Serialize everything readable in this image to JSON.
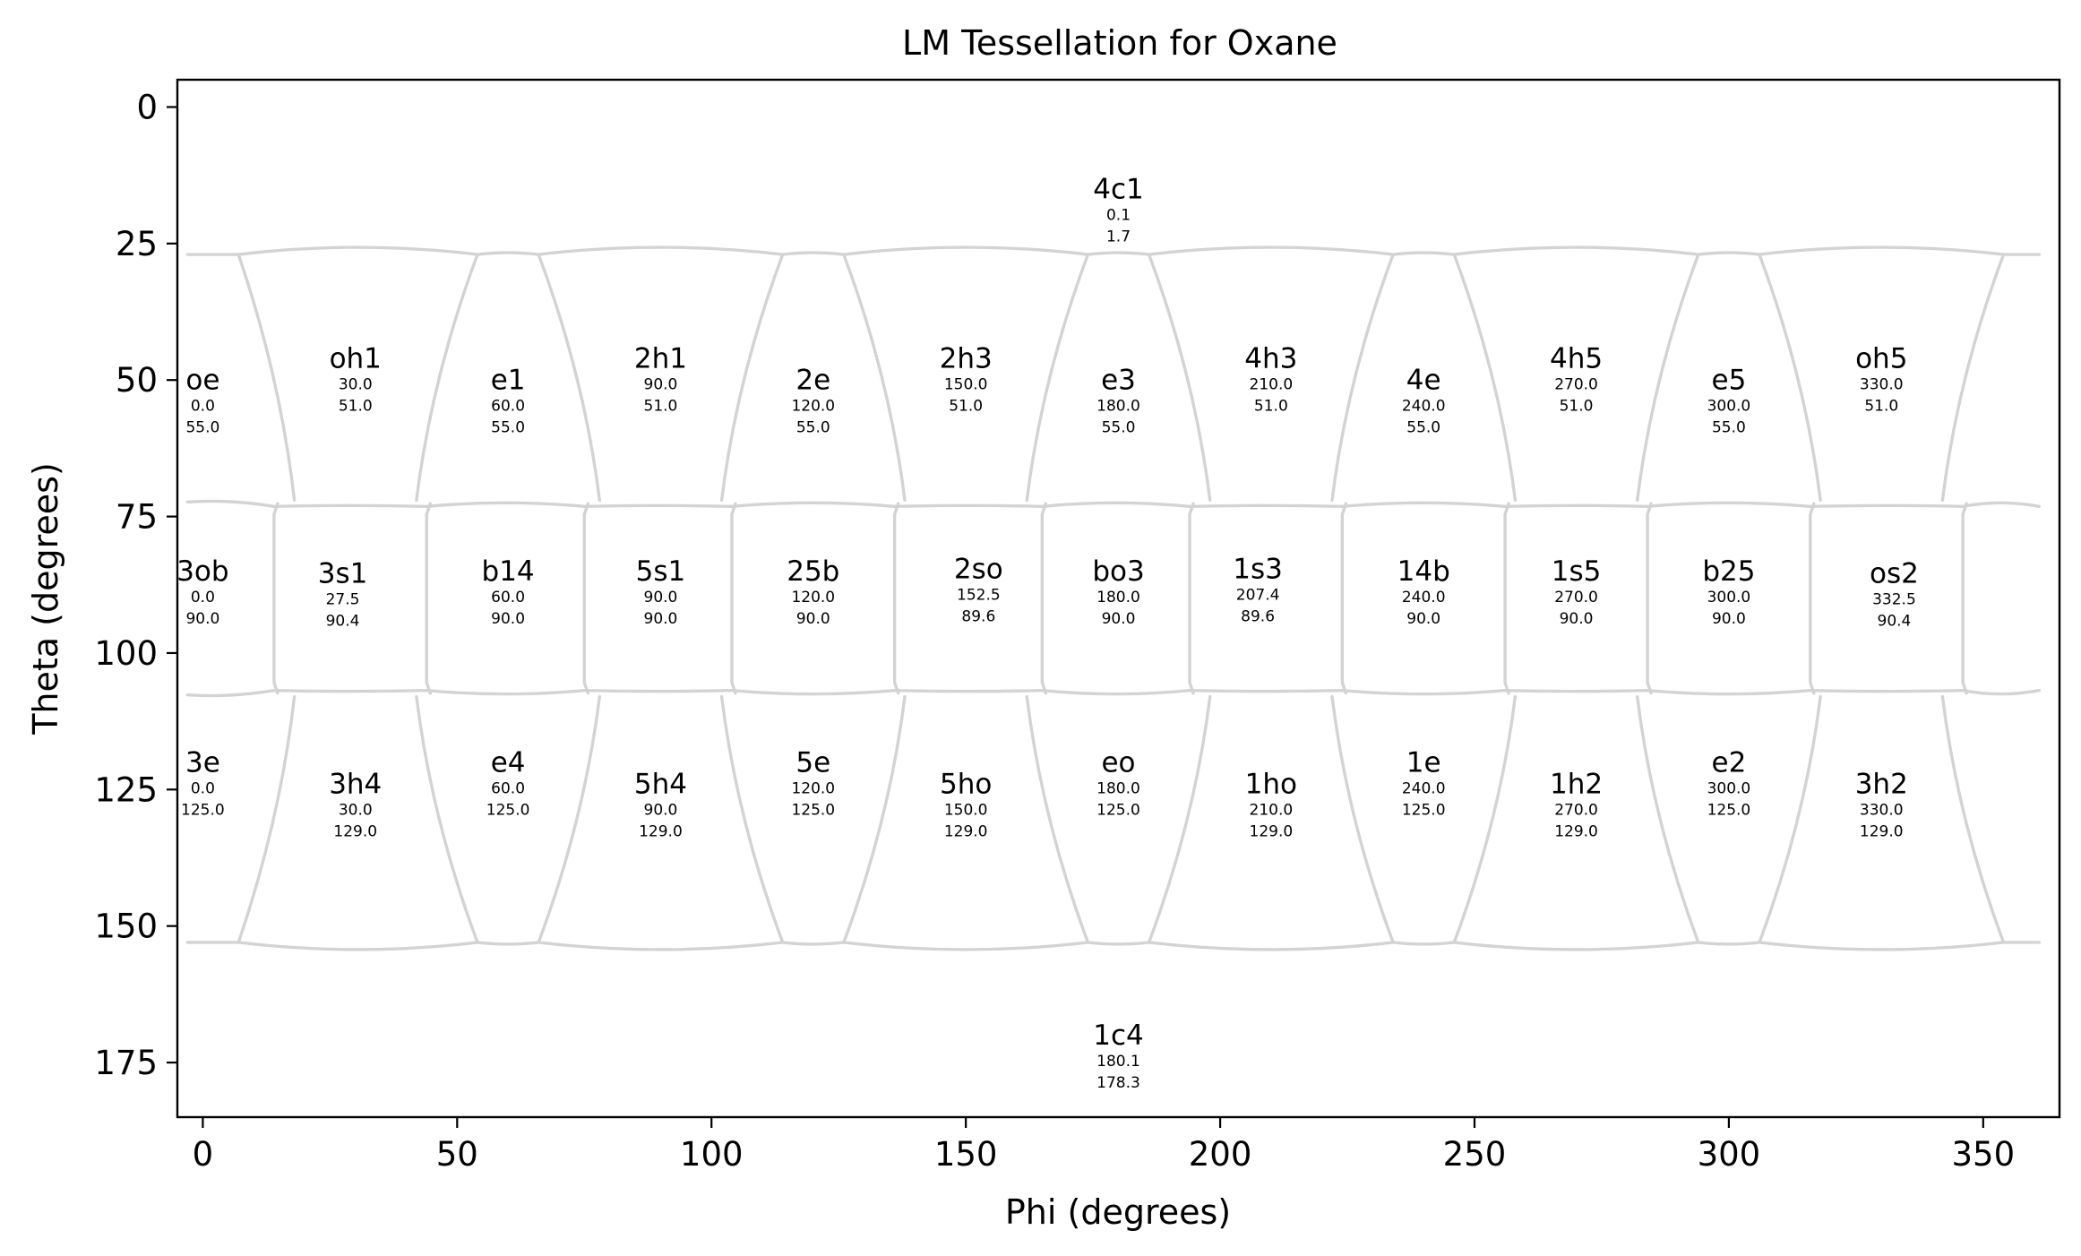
{
  "chart_data": {
    "type": "scatter",
    "title": "LM Tessellation for Oxane",
    "xlabel": "Phi (degrees)",
    "ylabel": "Theta (degrees)",
    "xlim": [
      -5,
      365
    ],
    "ylim": [
      185,
      -5
    ],
    "y_inverted": true,
    "xticks": [
      0,
      50,
      100,
      150,
      200,
      250,
      300,
      350
    ],
    "yticks": [
      0,
      25,
      50,
      75,
      100,
      125,
      150,
      175
    ],
    "grid": false,
    "boundary_color": "#d3d3d3",
    "bands": {
      "upper_top": 27,
      "upper_bottom": 72,
      "lower_top": 108,
      "lower_bottom": 153
    },
    "points": [
      {
        "name": "4c1",
        "phi": 0.1,
        "theta": 1.7,
        "phi_label": "0.1",
        "theta_label": "1.7",
        "label_x": 180,
        "label_theta": 20
      },
      {
        "name": "oe",
        "phi": 0.0,
        "theta": 55.0,
        "phi_label": "0.0",
        "theta_label": "55.0"
      },
      {
        "name": "oh1",
        "phi": 30.0,
        "theta": 51.0,
        "phi_label": "30.0",
        "theta_label": "51.0"
      },
      {
        "name": "e1",
        "phi": 60.0,
        "theta": 55.0,
        "phi_label": "60.0",
        "theta_label": "55.0"
      },
      {
        "name": "2h1",
        "phi": 90.0,
        "theta": 51.0,
        "phi_label": "90.0",
        "theta_label": "51.0"
      },
      {
        "name": "2e",
        "phi": 120.0,
        "theta": 55.0,
        "phi_label": "120.0",
        "theta_label": "55.0"
      },
      {
        "name": "2h3",
        "phi": 150.0,
        "theta": 51.0,
        "phi_label": "150.0",
        "theta_label": "51.0"
      },
      {
        "name": "e3",
        "phi": 180.0,
        "theta": 55.0,
        "phi_label": "180.0",
        "theta_label": "55.0"
      },
      {
        "name": "4h3",
        "phi": 210.0,
        "theta": 51.0,
        "phi_label": "210.0",
        "theta_label": "51.0"
      },
      {
        "name": "4e",
        "phi": 240.0,
        "theta": 55.0,
        "phi_label": "240.0",
        "theta_label": "55.0"
      },
      {
        "name": "4h5",
        "phi": 270.0,
        "theta": 51.0,
        "phi_label": "270.0",
        "theta_label": "51.0"
      },
      {
        "name": "e5",
        "phi": 300.0,
        "theta": 55.0,
        "phi_label": "300.0",
        "theta_label": "55.0"
      },
      {
        "name": "oh5",
        "phi": 330.0,
        "theta": 51.0,
        "phi_label": "330.0",
        "theta_label": "51.0"
      },
      {
        "name": "3ob",
        "phi": 0.0,
        "theta": 90.0,
        "phi_label": "0.0",
        "theta_label": "90.0"
      },
      {
        "name": "3s1",
        "phi": 27.5,
        "theta": 90.4,
        "phi_label": "27.5",
        "theta_label": "90.4"
      },
      {
        "name": "b14",
        "phi": 60.0,
        "theta": 90.0,
        "phi_label": "60.0",
        "theta_label": "90.0"
      },
      {
        "name": "5s1",
        "phi": 90.0,
        "theta": 90.0,
        "phi_label": "90.0",
        "theta_label": "90.0"
      },
      {
        "name": "25b",
        "phi": 120.0,
        "theta": 90.0,
        "phi_label": "120.0",
        "theta_label": "90.0"
      },
      {
        "name": "2so",
        "phi": 152.5,
        "theta": 89.6,
        "phi_label": "152.5",
        "theta_label": "89.6"
      },
      {
        "name": "bo3",
        "phi": 180.0,
        "theta": 90.0,
        "phi_label": "180.0",
        "theta_label": "90.0"
      },
      {
        "name": "1s3",
        "phi": 207.4,
        "theta": 89.6,
        "phi_label": "207.4",
        "theta_label": "89.6"
      },
      {
        "name": "14b",
        "phi": 240.0,
        "theta": 90.0,
        "phi_label": "240.0",
        "theta_label": "90.0"
      },
      {
        "name": "1s5",
        "phi": 270.0,
        "theta": 90.0,
        "phi_label": "270.0",
        "theta_label": "90.0"
      },
      {
        "name": "b25",
        "phi": 300.0,
        "theta": 90.0,
        "phi_label": "300.0",
        "theta_label": "90.0"
      },
      {
        "name": "os2",
        "phi": 332.5,
        "theta": 90.4,
        "phi_label": "332.5",
        "theta_label": "90.4"
      },
      {
        "name": "3e",
        "phi": 0.0,
        "theta": 125.0,
        "phi_label": "0.0",
        "theta_label": "125.0"
      },
      {
        "name": "3h4",
        "phi": 30.0,
        "theta": 129.0,
        "phi_label": "30.0",
        "theta_label": "129.0"
      },
      {
        "name": "e4",
        "phi": 60.0,
        "theta": 125.0,
        "phi_label": "60.0",
        "theta_label": "125.0"
      },
      {
        "name": "5h4",
        "phi": 90.0,
        "theta": 129.0,
        "phi_label": "90.0",
        "theta_label": "129.0"
      },
      {
        "name": "5e",
        "phi": 120.0,
        "theta": 125.0,
        "phi_label": "120.0",
        "theta_label": "125.0"
      },
      {
        "name": "5ho",
        "phi": 150.0,
        "theta": 129.0,
        "phi_label": "150.0",
        "theta_label": "129.0"
      },
      {
        "name": "eo",
        "phi": 180.0,
        "theta": 125.0,
        "phi_label": "180.0",
        "theta_label": "125.0"
      },
      {
        "name": "1ho",
        "phi": 210.0,
        "theta": 129.0,
        "phi_label": "210.0",
        "theta_label": "129.0"
      },
      {
        "name": "1e",
        "phi": 240.0,
        "theta": 125.0,
        "phi_label": "240.0",
        "theta_label": "125.0"
      },
      {
        "name": "1h2",
        "phi": 270.0,
        "theta": 129.0,
        "phi_label": "270.0",
        "theta_label": "129.0"
      },
      {
        "name": "e2",
        "phi": 300.0,
        "theta": 125.0,
        "phi_label": "300.0",
        "theta_label": "125.0"
      },
      {
        "name": "3h2",
        "phi": 330.0,
        "theta": 129.0,
        "phi_label": "330.0",
        "theta_label": "129.0"
      },
      {
        "name": "1c4",
        "phi": 180.1,
        "theta": 178.3,
        "phi_label": "180.1",
        "theta_label": "178.3",
        "label_x": 180,
        "label_theta": 175
      }
    ]
  }
}
